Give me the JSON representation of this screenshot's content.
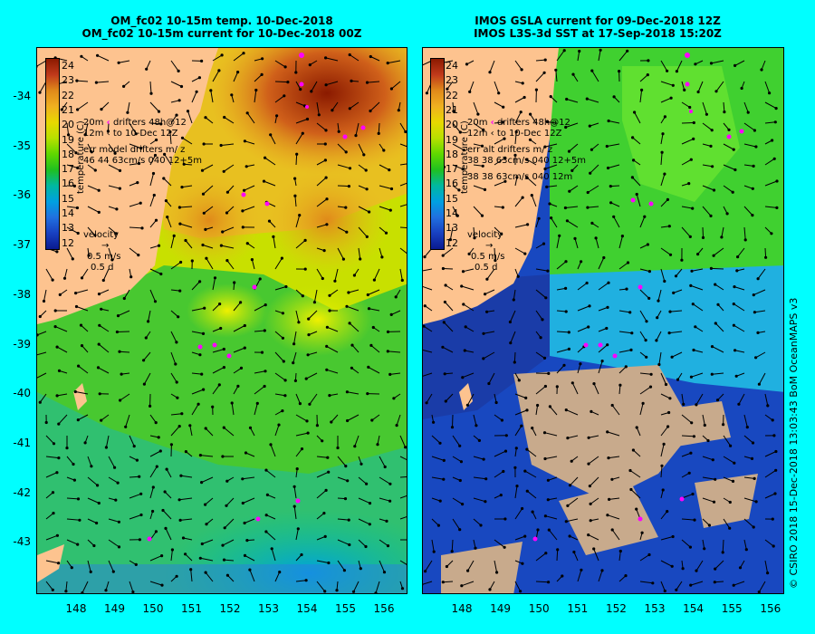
{
  "left_panel": {
    "title_line1": "OM_fc02 10-15m temp. 10-Dec-2018",
    "title_line2": "OM_fc02 10-15m current for 10-Dec-2018 00Z",
    "legend": {
      "drifter_depth": "20m",
      "drifter_depth2": "12m",
      "drifters_48h": "drifters 48h@12",
      "to_date": "to 10-Dec 12Z",
      "err_label": "err model drifters m/ z",
      "err_values": "46 44 63cm/s 040 12+5m"
    },
    "velocity": {
      "label": "velocity",
      "speed": "0.5 m/s",
      "time": "0.5 d"
    }
  },
  "right_panel": {
    "title_line1": "IMOS GSLA current for 09-Dec-2018 12Z",
    "title_line2": "IMOS L3S-3d SST at 17-Sep-2018 15:20Z",
    "legend": {
      "drifter_depth": "20m",
      "drifter_depth2": "12m",
      "drifters_48h": "drifters 48h@12",
      "to_date": "to 10-Dec 12Z",
      "err_label": "err alt drifters m/ z",
      "err_values": "38 38 63cm/s 040 12+5m",
      "err_values2": "38 38 63cm/s 040 12m"
    },
    "velocity": {
      "label": "velocity",
      "speed": "0.5 m/s",
      "time": "0.5 d"
    }
  },
  "colorbar": {
    "unit": "temperature (C)",
    "ticks": [
      "24",
      "23",
      "22",
      "21",
      "20",
      "19",
      "18",
      "17",
      "16",
      "15",
      "14",
      "13",
      "12"
    ],
    "colors": [
      "#8b1a00",
      "#c0391b",
      "#e08a1a",
      "#f0b020",
      "#e8d800",
      "#b8e000",
      "#60d800",
      "#20c020",
      "#00b8a0",
      "#00a0e0",
      "#2070e0",
      "#1840c0",
      "#0a1a90"
    ]
  },
  "y_axis": [
    "-34",
    "-35",
    "-36",
    "-37",
    "-38",
    "-39",
    "-40",
    "-41",
    "-42",
    "-43"
  ],
  "x_axis": [
    "148",
    "149",
    "150",
    "151",
    "152",
    "153",
    "154",
    "155",
    "156"
  ],
  "credit": "© CSIRO 2018   15-Dec-2018 13:03:43 BoM OceanMAPS v3",
  "colors": {
    "background": "#00ffff",
    "land": "#fdc38f",
    "land_mask": "#c8aa8c",
    "drifters": "#ff00ff",
    "arrows": "#000000"
  }
}
